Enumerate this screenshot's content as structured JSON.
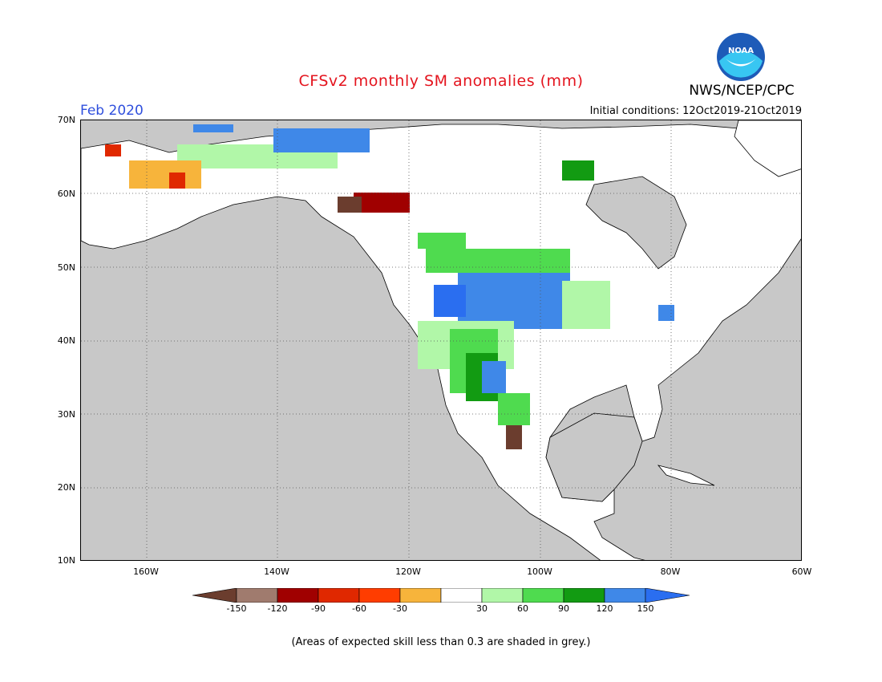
{
  "title": "CFSv2 monthly SM anomalies (mm)",
  "agency": "NWS/NCEP/CPC",
  "logo_text": "NOAA",
  "valid_month": "Feb 2020",
  "initial_conditions": "Initial conditions: 12Oct2019-21Oct2019",
  "lat_labels": [
    "70N",
    "60N",
    "50N",
    "40N",
    "30N",
    "20N",
    "10N"
  ],
  "lon_labels": [
    "160W",
    "140W",
    "120W",
    "100W",
    "80W",
    "60W"
  ],
  "colorbar": {
    "labels": [
      "-150",
      "-120",
      "-90",
      "-60",
      "-30",
      "30",
      "60",
      "90",
      "120",
      "150"
    ],
    "colors": [
      "#6b3d2e",
      "#a07b6e",
      "#a00000",
      "#e02800",
      "#ff3d00",
      "#f7b43b",
      "#ffffff",
      "#b1f7a8",
      "#4fdb4f",
      "#129b12",
      "#3f88e8",
      "#2a6ef0"
    ]
  },
  "colors": {
    "ocean": "#c8c8c8",
    "land": "#ffffff",
    "title": "#e4141e",
    "month": "#2f4fdd"
  },
  "footnote": "(Areas of expected skill less than 0.3 are shaded in grey.)"
}
